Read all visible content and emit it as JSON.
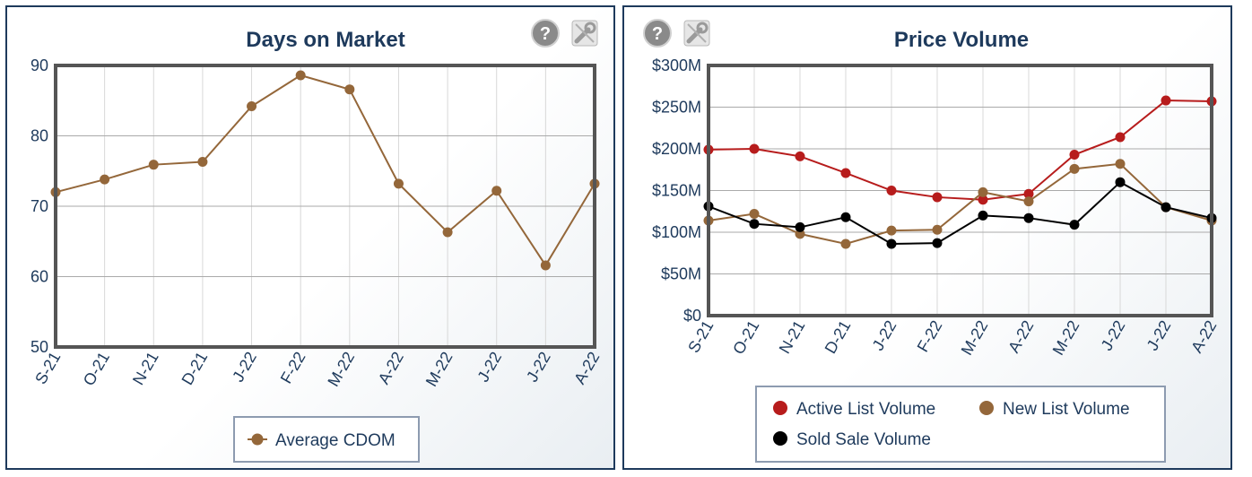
{
  "charts": {
    "left": {
      "title": "Days on Market",
      "help_icon": "question-circle-icon",
      "settings_icon": "wrench-icon"
    },
    "right": {
      "title": "Price Volume",
      "help_icon": "question-circle-icon",
      "settings_icon": "wrench-icon"
    }
  },
  "chart_data": [
    {
      "type": "line",
      "title": "Days on Market",
      "categories": [
        "S-21",
        "O-21",
        "N-21",
        "D-21",
        "J-22",
        "F-22",
        "M-22",
        "A-22",
        "M-22",
        "J-22",
        "J-22",
        "A-22"
      ],
      "ylim": [
        50,
        90
      ],
      "yticks": [
        "50",
        "60",
        "70",
        "80",
        "90"
      ],
      "grid": true,
      "legend_position": "bottom-center",
      "series": [
        {
          "name": "Average CDOM",
          "color": "#94673a",
          "values": [
            72.0,
            73.8,
            75.9,
            76.3,
            84.2,
            88.6,
            86.6,
            73.2,
            66.3,
            72.2,
            61.6,
            73.2
          ]
        }
      ]
    },
    {
      "type": "line",
      "title": "Price Volume",
      "categories": [
        "S-21",
        "O-21",
        "N-21",
        "D-21",
        "J-22",
        "F-22",
        "M-22",
        "A-22",
        "M-22",
        "J-22",
        "J-22",
        "A-22"
      ],
      "ylim": [
        0,
        300
      ],
      "yticks": [
        "$0",
        "$50M",
        "$100M",
        "$150M",
        "$200M",
        "$250M",
        "$300M"
      ],
      "grid": true,
      "legend_position": "bottom-center",
      "series": [
        {
          "name": "Active List Volume",
          "color": "#b71c1c",
          "values": [
            199,
            200,
            191,
            171,
            150,
            142,
            139,
            146,
            193,
            214,
            258,
            257
          ]
        },
        {
          "name": "New List Volume",
          "color": "#94673a",
          "values": [
            114,
            122,
            98,
            86,
            102,
            103,
            148,
            137,
            176,
            182,
            130,
            114
          ]
        },
        {
          "name": "Sold Sale Volume",
          "color": "#000000",
          "values": [
            131,
            110,
            106,
            118,
            86,
            87,
            120,
            117,
            109,
            160,
            130,
            117
          ]
        }
      ]
    }
  ]
}
